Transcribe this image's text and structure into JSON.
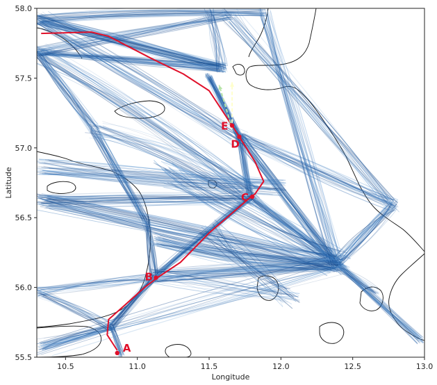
{
  "axes": {
    "xlabel": "Longitude",
    "ylabel": "Latitude",
    "xlim": [
      10.3,
      13.0
    ],
    "ylim": [
      55.5,
      58.0
    ],
    "xticks": [
      "10.5",
      "11.0",
      "11.5",
      "12.0",
      "12.5",
      "13.0"
    ],
    "yticks": [
      "55.5",
      "56.0",
      "56.5",
      "57.0",
      "57.5",
      "58.0"
    ]
  },
  "colors": {
    "traffic_dark": "#0b3a7a",
    "traffic_mid": "#1f5ea8",
    "traffic_light": "#6fa3d8",
    "route": "#e0102a",
    "coast": "#111111",
    "arrow_green": "#b7e4a8",
    "arrow_yellow": "#ffffcc"
  },
  "route": {
    "points": [
      [
        10.33,
        57.82
      ],
      [
        10.68,
        57.83
      ],
      [
        10.8,
        57.8
      ],
      [
        11.1,
        57.64
      ],
      [
        11.32,
        57.53
      ],
      [
        11.5,
        57.41
      ],
      [
        11.57,
        57.3
      ],
      [
        11.66,
        57.16
      ],
      [
        11.71,
        57.08
      ],
      [
        11.82,
        56.9
      ],
      [
        11.88,
        56.76
      ],
      [
        11.82,
        56.67
      ],
      [
        11.78,
        56.64
      ],
      [
        11.5,
        56.39
      ],
      [
        11.3,
        56.18
      ],
      [
        11.14,
        56.07
      ],
      [
        11.05,
        56.0
      ],
      [
        10.92,
        55.88
      ],
      [
        10.8,
        55.77
      ],
      [
        10.79,
        55.66
      ],
      [
        10.86,
        55.55
      ]
    ]
  },
  "waypoints": [
    {
      "label": "A",
      "lon": 10.86,
      "lat": 55.53
    },
    {
      "label": "B",
      "lon": 11.13,
      "lat": 56.07
    },
    {
      "label": "C",
      "lon": 11.8,
      "lat": 56.65
    },
    {
      "label": "D",
      "lon": 11.71,
      "lat": 57.08
    },
    {
      "label": "E",
      "lon": 11.66,
      "lat": 57.16
    }
  ],
  "arrows": [
    {
      "name": "green",
      "from": [
        11.66,
        57.14
      ],
      "to": [
        11.57,
        57.45
      ]
    },
    {
      "name": "yellow",
      "from": [
        11.66,
        57.14
      ],
      "to": [
        11.66,
        57.47
      ]
    }
  ]
}
